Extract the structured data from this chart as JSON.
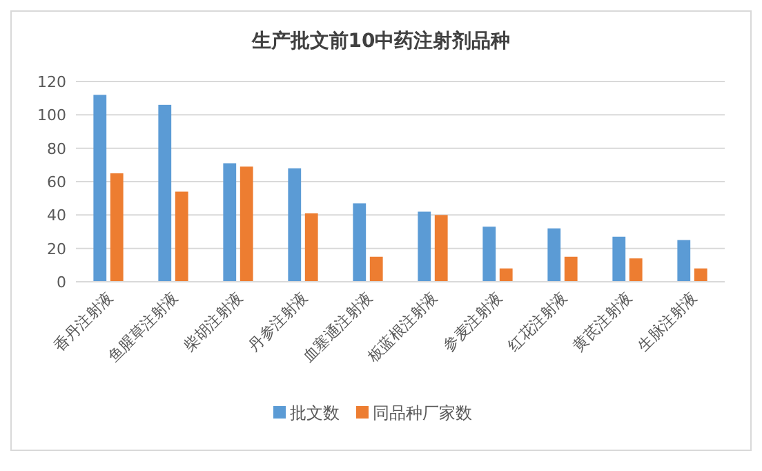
{
  "chart_data": {
    "type": "bar",
    "title": "生产批文前10中药注射剂品种",
    "categories": [
      "香丹注射液",
      "鱼腥草注射液",
      "柴胡注射液",
      "丹参注射液",
      "血塞通注射液",
      "板蓝根注射液",
      "参麦注射液",
      "红花注射液",
      "黄芪注射液",
      "生脉注射液"
    ],
    "series": [
      {
        "name": "批文数",
        "color": "#5b9bd5",
        "values": [
          112,
          106,
          71,
          68,
          47,
          42,
          33,
          32,
          27,
          25
        ]
      },
      {
        "name": "同品种厂家数",
        "color": "#ed7d31",
        "values": [
          65,
          54,
          69,
          41,
          15,
          40,
          8,
          15,
          14,
          8
        ]
      }
    ],
    "ylim": [
      0,
      120
    ],
    "yticks": [
      0,
      20,
      40,
      60,
      80,
      100,
      120
    ],
    "grid": "y",
    "legend": "bottom"
  }
}
